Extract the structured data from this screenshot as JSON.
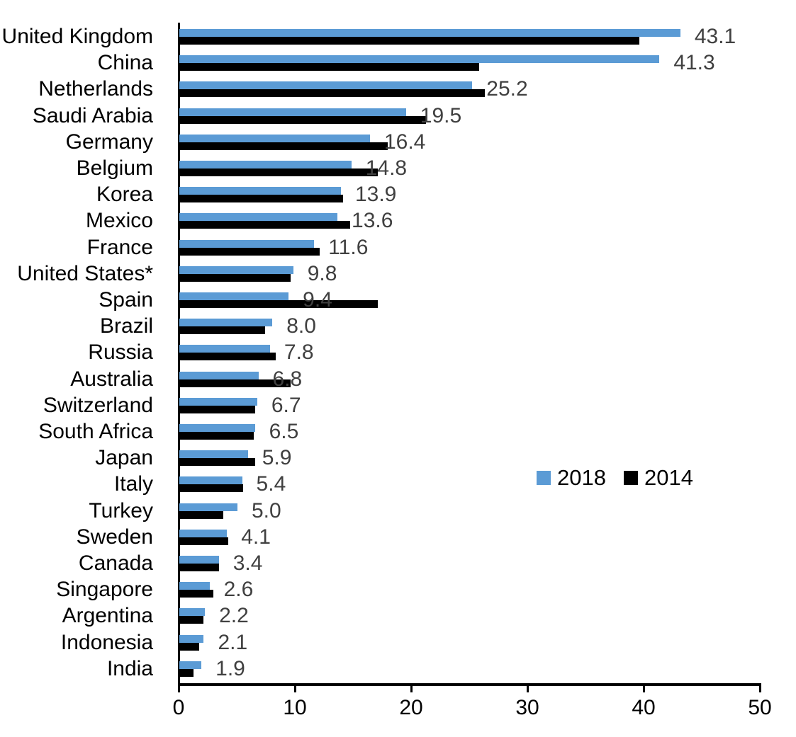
{
  "chart_data": {
    "type": "bar",
    "orientation": "horizontal",
    "title": "",
    "xlabel": "",
    "ylabel": "",
    "categories": [
      "United Kingdom",
      "China",
      "Netherlands",
      "Saudi Arabia",
      "Germany",
      "Belgium",
      "Korea",
      "Mexico",
      "France",
      "United States*",
      "Spain",
      "Brazil",
      "Russia",
      "Australia",
      "Switzerland",
      "South Africa",
      "Japan",
      "Italy",
      "Turkey",
      "Sweden",
      "Canada",
      "Singapore",
      "Argentina",
      "Indonesia",
      "India"
    ],
    "series": [
      {
        "name": "2018",
        "color": "#5B9BD5",
        "data_labels_shown": true,
        "values": [
          43.1,
          41.3,
          25.2,
          19.5,
          16.4,
          14.8,
          13.9,
          13.6,
          11.6,
          9.8,
          9.4,
          8.0,
          7.8,
          6.8,
          6.7,
          6.5,
          5.9,
          5.4,
          5.0,
          4.1,
          3.4,
          2.6,
          2.2,
          2.1,
          1.9
        ]
      },
      {
        "name": "2014",
        "color": "#000000",
        "data_labels_shown": false,
        "values": [
          39.6,
          25.8,
          26.3,
          21.2,
          17.9,
          17.1,
          14.1,
          14.7,
          12.1,
          9.6,
          17.1,
          7.4,
          8.3,
          9.6,
          6.5,
          6.4,
          6.5,
          5.5,
          3.8,
          4.2,
          3.4,
          2.9,
          2.1,
          1.7,
          1.2
        ]
      }
    ],
    "xlim": [
      0,
      50
    ],
    "x_ticks": [
      "0",
      "10",
      "20",
      "30",
      "40",
      "50"
    ],
    "grid": false,
    "legend_position": "center-right",
    "value_label_color": "#404040",
    "axis_color": "#000000"
  }
}
